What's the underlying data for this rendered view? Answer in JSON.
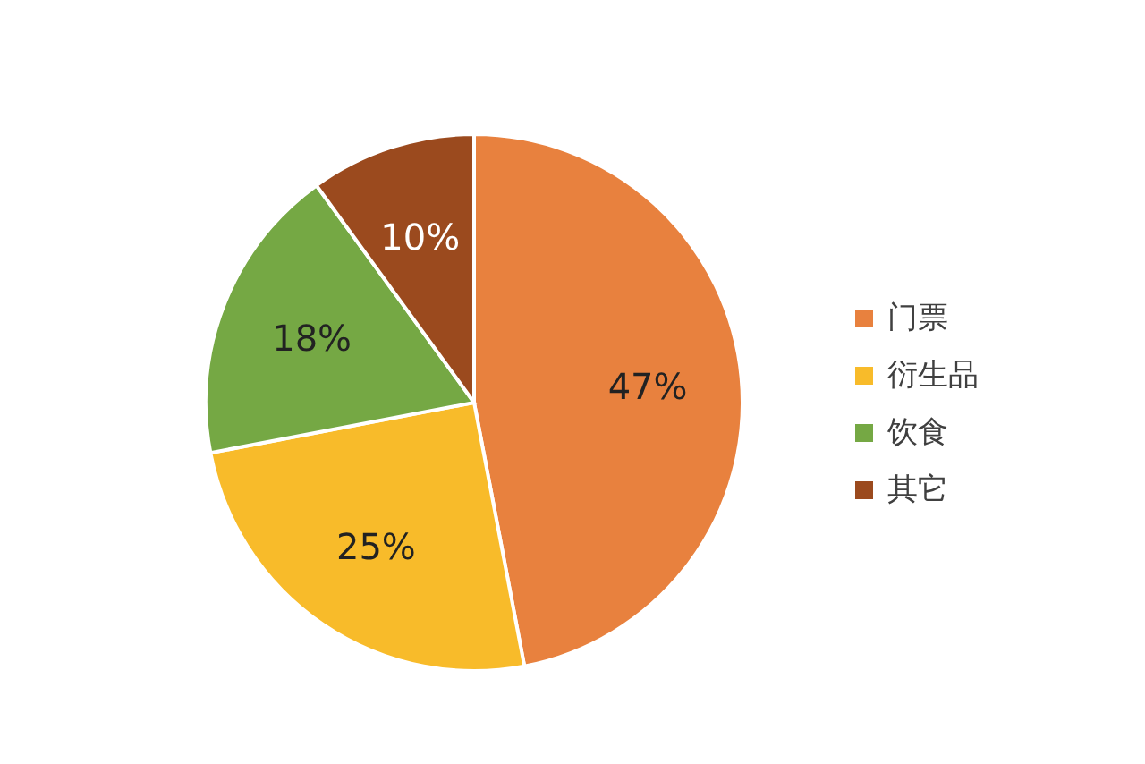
{
  "chart_data": {
    "type": "pie",
    "categories": [
      "门票",
      "衍生品",
      "饮食",
      "其它"
    ],
    "values": [
      47,
      25,
      18,
      10
    ],
    "value_labels": [
      "47%",
      "25%",
      "18%",
      "10%"
    ],
    "colors": [
      "#e8813e",
      "#f8bb2a",
      "#75a844",
      "#9b4a1e"
    ],
    "legend": "right"
  }
}
